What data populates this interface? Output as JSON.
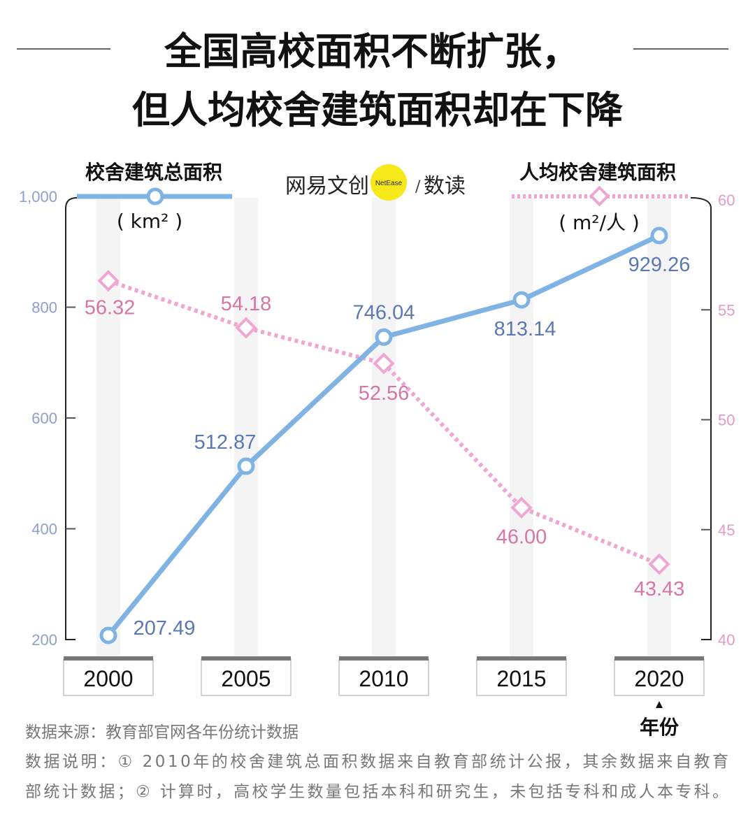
{
  "title": {
    "line1": "全国高校面积不断扩张，",
    "line2": "但人均校舍建筑面积却在下降"
  },
  "logo": {
    "left": "网易文创",
    "badge": "NetEase",
    "sep": "/",
    "right": "数读"
  },
  "colors": {
    "total_area": "#7fb3e3",
    "total_area_text": "#5b78b5",
    "per_capita": "#f0a6d3",
    "per_capita_text": "#d676a8",
    "stripe": "#f4f4f4"
  },
  "chart_data": {
    "type": "line",
    "x": [
      2000,
      2005,
      2010,
      2015,
      2020
    ],
    "xlabel": "年份",
    "x_tick_labels": [
      "2000",
      "2005",
      "2010",
      "2015",
      "2020"
    ],
    "grid": false,
    "series": [
      {
        "name": "校舍建筑总面积",
        "unit": "( km² )",
        "axis": "left",
        "style": "solid",
        "marker": "circle",
        "values": [
          207.49,
          512.87,
          746.04,
          813.14,
          929.26
        ],
        "labels": [
          "207.49",
          "512.87",
          "746.04",
          "813.14",
          "929.26"
        ]
      },
      {
        "name": "人均校舍建筑面积",
        "unit": "( m²/人 )",
        "axis": "right",
        "style": "dotted",
        "marker": "diamond",
        "values": [
          56.32,
          54.18,
          52.56,
          46.0,
          43.43
        ],
        "labels": [
          "56.32",
          "54.18",
          "52.56",
          "46.00",
          "43.43"
        ]
      }
    ],
    "left_axis": {
      "ylim": [
        200,
        1000
      ],
      "ticks": [
        200,
        400,
        600,
        800,
        1000
      ],
      "tick_labels": [
        "200",
        "400",
        "600",
        "800",
        "1,000"
      ]
    },
    "right_axis": {
      "ylim": [
        40,
        60
      ],
      "ticks": [
        40,
        45,
        50,
        55,
        60
      ],
      "tick_labels": [
        "40",
        "45",
        "50",
        "55",
        "60"
      ]
    }
  },
  "notes": {
    "source": "数据来源：教育部官网各年份统计数据",
    "desc1": "数据说明：① 2010年的校舍建筑总面积数据来自教育部统计公报，其余数据来自教育",
    "desc2": "部统计数据；② 计算时，高校学生数量包括本科和研究生，未包括专科和成人本专科。"
  }
}
